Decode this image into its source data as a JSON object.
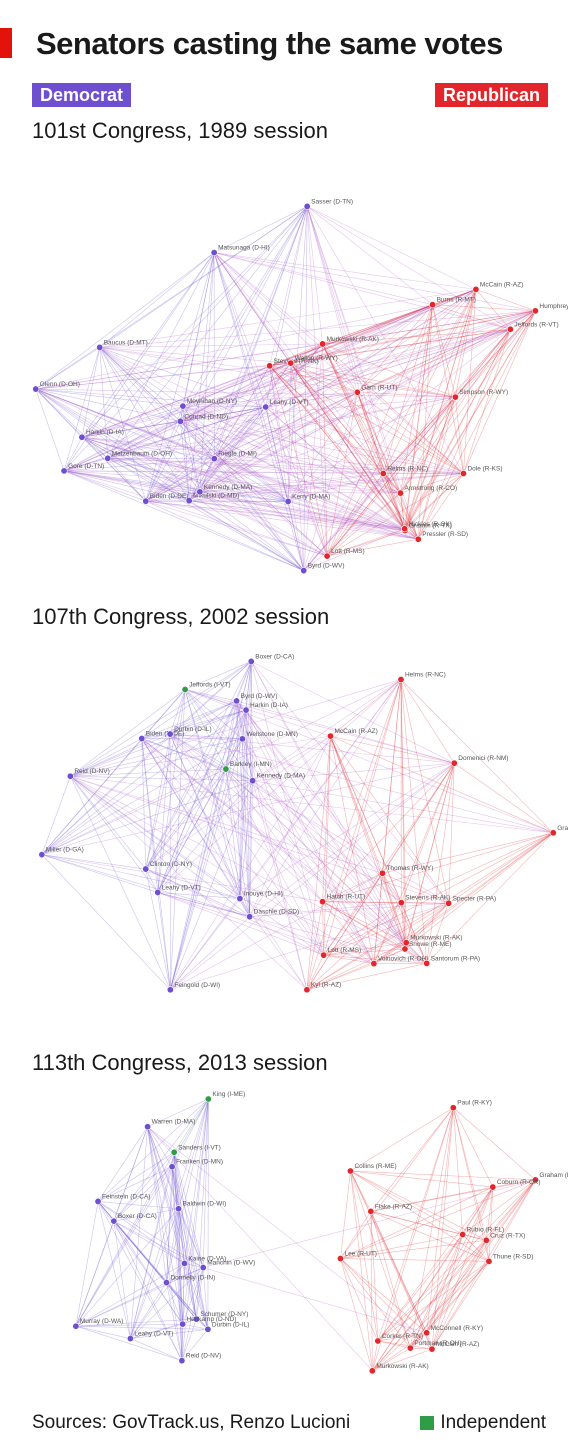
{
  "title": "Senators casting the same votes",
  "legend": {
    "democrat": "Democrat",
    "republican": "Republican",
    "independent": "Independent"
  },
  "colors": {
    "democrat": "#6e4fd0",
    "republican": "#e3262b",
    "independent": "#2e9d45",
    "accent": "#e3120b"
  },
  "panels": [
    {
      "title": "101st Congress, 1989 session",
      "senators": {
        "dem": [
          "Gore (D-TN)",
          "Moynihan (D-NY)",
          "Kerry (D-MA)",
          "Byrd (D-WV)",
          "Metzenbaum (D-OH)",
          "Glenn (D-OH)",
          "Riegle (D-MI)",
          "Mikulski (D-MD)",
          "Leahy (D-VT)",
          "Matsunaga (D-HI)",
          "Sasser (D-TN)",
          "Harkin (D-IA)",
          "Baucus (D-MT)",
          "Conrad (D-ND)",
          "Kennedy (D-MA)",
          "Biden (D-DE)"
        ],
        "rep": [
          "Jeffords (R-VT)",
          "Dole (R-KS)",
          "Stevens (R-AK)",
          "Murkowski (R-AK)",
          "McCain (R-AZ)",
          "Gramm (R-TX)",
          "Wallop (R-WY)",
          "Helms (R-NC)",
          "Simpson (R-WY)",
          "Nickles (R-OK)",
          "Burns (R-MT)",
          "Garn (R-UT)",
          "Armstrong (R-CO)",
          "Humphrey (R-NH)",
          "Pressler (R-SD)",
          "Lott (R-MS)"
        ],
        "ind": []
      }
    },
    {
      "title": "107th Congress, 2002 session",
      "senators": {
        "dem": [
          "Harkin (D-IA)",
          "Biden (D-DE)",
          "Clinton (D-NY)",
          "Daschle (D-SD)",
          "Feingold (D-WI)",
          "Kennedy (D-MA)",
          "Leahy (D-VT)",
          "Wellstone (D-MN)",
          "Durbin (D-IL)",
          "Inouye (D-HI)",
          "Boxer (D-CA)",
          "Byrd (D-WV)",
          "Miller (D-GA)",
          "Reid (D-NV)"
        ],
        "rep": [
          "Snowe (R-ME)",
          "Specter (R-PA)",
          "Voinovich (R-OH)",
          "Lott (R-MS)",
          "Kyl (R-AZ)",
          "McCain (R-AZ)",
          "Thomas (R-WY)",
          "Helms (R-NC)",
          "Stevens (R-AK)",
          "Domenici (R-NM)",
          "Hatch (R-UT)",
          "Santorum (R-PA)",
          "Gramm (R-TX)",
          "Murkowski (R-AK)"
        ],
        "ind": [
          "Jeffords (I-VT)",
          "Barkley (I-MN)"
        ]
      }
    },
    {
      "title": "113th Congress, 2013 session",
      "senators": {
        "dem": [
          "Warren (D-MA)",
          "Franken (D-MN)",
          "Schumer (D-NY)",
          "Murray (D-WA)",
          "Boxer (D-CA)",
          "Durbin (D-IL)",
          "Reid (D-NV)",
          "Manchin (D-WV)",
          "Leahy (D-VT)",
          "Kaine (D-VA)",
          "Baldwin (D-WI)",
          "Feinstein (D-CA)",
          "Heitkamp (D-ND)",
          "Donnelly (D-IN)"
        ],
        "rep": [
          "Cruz (R-TX)",
          "Paul (R-KY)",
          "Rubio (R-FL)",
          "Lee (R-UT)",
          "McConnell (R-KY)",
          "Collins (R-ME)",
          "Murkowski (R-AK)",
          "Graham (R-SC)",
          "McCain (R-AZ)",
          "Flake (R-AZ)",
          "Coburn (R-OK)",
          "Corker (R-TN)",
          "Portman (R-OH)",
          "Thune (R-SD)"
        ],
        "ind": [
          "Sanders (I-VT)",
          "King (I-ME)"
        ]
      }
    }
  ],
  "sources": "Sources: GovTrack.us, Renzo Lucioni"
}
